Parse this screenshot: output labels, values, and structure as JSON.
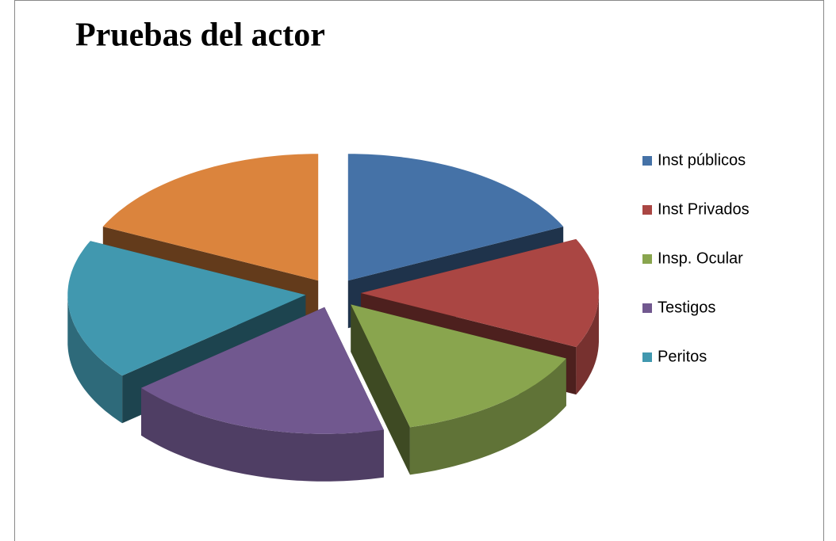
{
  "chart_data": {
    "type": "pie",
    "title": "Pruebas del actor",
    "categories": [
      "Inst públicos",
      "Inst Privados",
      "Insp. Ocular",
      "Testigos",
      "Peritos",
      null
    ],
    "values": [
      18,
      14,
      14,
      18,
      18,
      18
    ],
    "colors": [
      "#4572a7",
      "#aa4643",
      "#89a54e",
      "#71588f",
      "#4198af",
      "#db843d"
    ],
    "legend": "right",
    "exploded": true,
    "three_d": true
  }
}
